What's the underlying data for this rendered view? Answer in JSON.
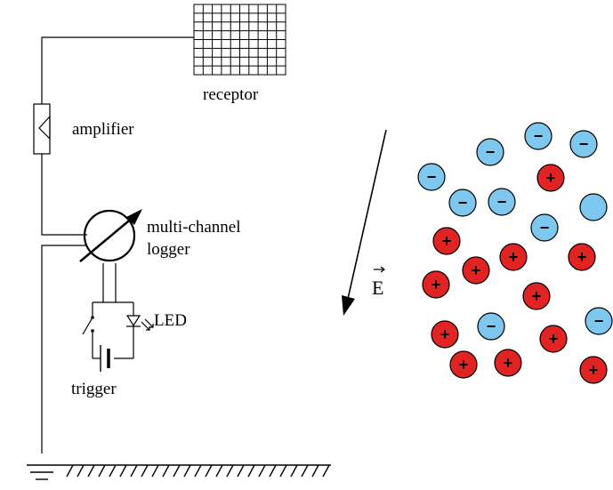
{
  "labels": {
    "receptor": "receptor",
    "amplifier": "amplifier",
    "logger_line1": "multi-channel",
    "logger_line2": "logger",
    "led": "LED",
    "trigger": "trigger",
    "field": "E"
  },
  "charges": {
    "positive_symbol": "+",
    "negative_symbol": "−",
    "positive_color": "#e02424",
    "negative_color": "#7ec8ef",
    "outline_color": "#000000",
    "particles": [
      {
        "sign": "-"
      },
      {
        "sign": "-"
      },
      {
        "sign": "-"
      },
      {
        "sign": "-"
      },
      {
        "sign": "+"
      },
      {
        "sign": "-"
      },
      {
        "sign": "-"
      },
      {
        "sign": "0"
      },
      {
        "sign": "-"
      },
      {
        "sign": "+"
      },
      {
        "sign": "+"
      },
      {
        "sign": "+"
      },
      {
        "sign": "+"
      },
      {
        "sign": "+"
      },
      {
        "sign": "+"
      },
      {
        "sign": "+"
      },
      {
        "sign": "-"
      },
      {
        "sign": "+"
      },
      {
        "sign": "-"
      },
      {
        "sign": "+"
      },
      {
        "sign": "+"
      },
      {
        "sign": "+"
      },
      {
        "sign": "+"
      }
    ]
  }
}
